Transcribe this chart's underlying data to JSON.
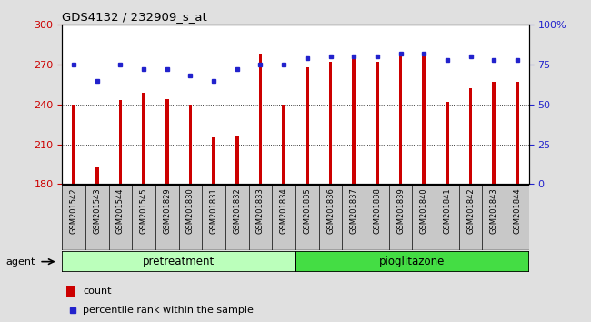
{
  "title": "GDS4132 / 232909_s_at",
  "categories": [
    "GSM201542",
    "GSM201543",
    "GSM201544",
    "GSM201545",
    "GSM201829",
    "GSM201830",
    "GSM201831",
    "GSM201832",
    "GSM201833",
    "GSM201834",
    "GSM201835",
    "GSM201836",
    "GSM201837",
    "GSM201838",
    "GSM201839",
    "GSM201840",
    "GSM201841",
    "GSM201842",
    "GSM201843",
    "GSM201844"
  ],
  "bar_values": [
    240,
    193,
    243,
    249,
    244,
    240,
    215,
    216,
    278,
    240,
    268,
    272,
    274,
    272,
    278,
    276,
    242,
    252,
    257,
    257
  ],
  "dot_values": [
    75,
    65,
    75,
    72,
    72,
    68,
    65,
    72,
    75,
    75,
    79,
    80,
    80,
    80,
    82,
    82,
    78,
    80,
    78,
    78
  ],
  "bar_color": "#cc0000",
  "dot_color": "#2222cc",
  "bar_bottom": 180,
  "ylim_left": [
    180,
    300
  ],
  "ylim_right": [
    0,
    100
  ],
  "yticks_left": [
    180,
    210,
    240,
    270,
    300
  ],
  "ytick_labels_left": [
    "180",
    "210",
    "240",
    "270",
    "300"
  ],
  "yticks_right": [
    0,
    25,
    50,
    75,
    100
  ],
  "ytick_labels_right": [
    "0",
    "25",
    "50",
    "75",
    "100%"
  ],
  "grid_lines": [
    210,
    240,
    270
  ],
  "group1_label": "pretreatment",
  "group2_label": "pioglitazone",
  "group1_count": 10,
  "group2_count": 10,
  "agent_label": "agent",
  "legend_bar_label": "count",
  "legend_dot_label": "percentile rank within the sample",
  "fig_bg": "#e0e0e0",
  "plot_bg": "#ffffff",
  "xtick_bg": "#c8c8c8",
  "group1_color": "#bbffbb",
  "group2_color": "#44dd44",
  "figsize": [
    6.5,
    3.54
  ],
  "dpi": 100,
  "bar_width": 0.15
}
